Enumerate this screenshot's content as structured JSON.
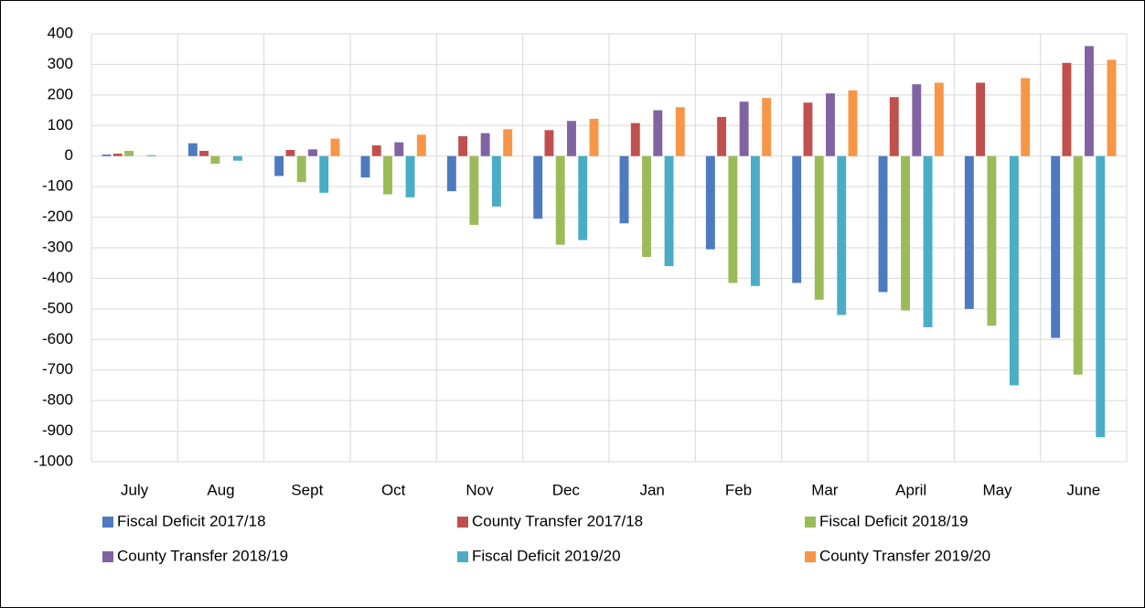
{
  "chart_data": {
    "type": "bar",
    "categories": [
      "July",
      "Aug",
      "Sept",
      "Oct",
      "Nov",
      "Dec",
      "Jan",
      "Feb",
      "Mar",
      "April",
      "May",
      "June"
    ],
    "series": [
      {
        "name": "Fiscal Deficit 2017/18",
        "color": "#4e7ac0",
        "values": [
          5,
          42,
          -65,
          -70,
          -115,
          -205,
          -220,
          -305,
          -415,
          -445,
          -500,
          -595
        ]
      },
      {
        "name": "County Transfer 2017/18",
        "color": "#c0504d",
        "values": [
          8,
          17,
          20,
          35,
          65,
          85,
          108,
          128,
          175,
          193,
          240,
          305
        ]
      },
      {
        "name": "Fiscal Deficit 2018/19",
        "color": "#9bbb59",
        "values": [
          17,
          -25,
          -85,
          -125,
          -225,
          -290,
          -330,
          -415,
          -470,
          -505,
          -555,
          -715
        ]
      },
      {
        "name": "County Transfer 2018/19",
        "color": "#8064a2",
        "values": [
          null,
          null,
          22,
          45,
          75,
          115,
          150,
          178,
          205,
          235,
          null,
          360
        ]
      },
      {
        "name": "Fiscal Deficit 2019/20",
        "color": "#4bacc6",
        "values": [
          3,
          -15,
          -120,
          -135,
          -165,
          -275,
          -360,
          -425,
          -520,
          -560,
          -750,
          -920
        ]
      },
      {
        "name": "County Transfer 2019/20",
        "color": "#f79646",
        "values": [
          null,
          null,
          57,
          70,
          88,
          122,
          160,
          190,
          215,
          240,
          255,
          315
        ]
      }
    ],
    "ylim": [
      -1000,
      400
    ],
    "yticks": [
      -1000,
      -900,
      -800,
      -700,
      -600,
      -500,
      -400,
      -300,
      -200,
      -100,
      0,
      100,
      200,
      300,
      400
    ],
    "grid": true,
    "legend": "bottom"
  }
}
